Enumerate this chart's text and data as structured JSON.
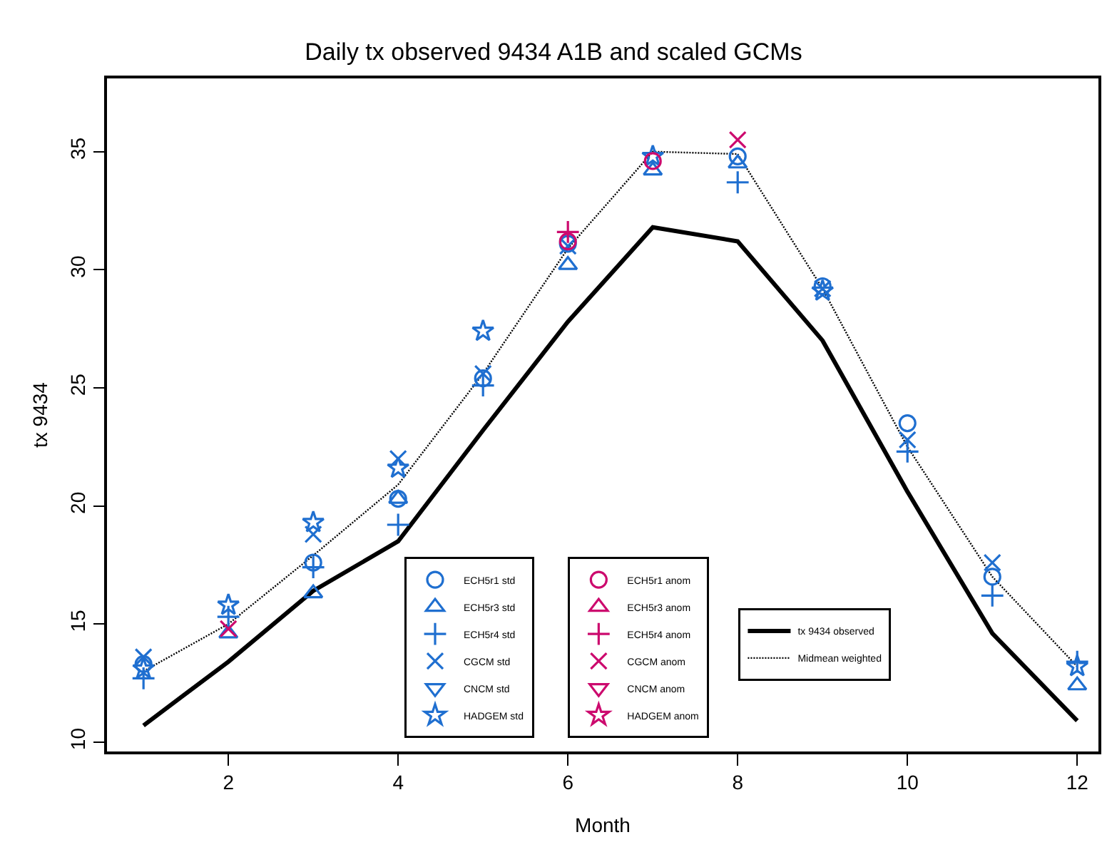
{
  "chart_data": {
    "type": "scatter",
    "title": "Daily tx observed 9434 A1B and scaled GCMs",
    "xlabel": "Month",
    "ylabel": "tx 9434",
    "x": [
      1,
      2,
      3,
      4,
      5,
      6,
      7,
      8,
      9,
      10,
      11,
      12
    ],
    "xlim": [
      0.57,
      12.25
    ],
    "xticks": [
      2,
      4,
      6,
      8,
      10,
      12
    ],
    "ylim": [
      9.6,
      38.1
    ],
    "yticks": [
      10,
      15,
      20,
      25,
      30,
      35
    ],
    "legend": "bottom",
    "series": [
      {
        "name": "ECH5r1 std",
        "color": "#1f6fd0",
        "marker": "circle",
        "values": [
          13.3,
          null,
          17.6,
          20.3,
          25.4,
          31.1,
          null,
          34.8,
          29.3,
          23.5,
          17.0,
          null
        ]
      },
      {
        "name": "ECH5r3 std",
        "color": "#1f6fd0",
        "marker": "triangle",
        "values": [
          null,
          14.6,
          16.3,
          20.3,
          null,
          30.2,
          34.2,
          34.5,
          null,
          null,
          null,
          12.4
        ]
      },
      {
        "name": "ECH5r4 std",
        "color": "#1f6fd0",
        "marker": "cross",
        "values": [
          12.7,
          15.3,
          17.4,
          19.2,
          25.1,
          null,
          null,
          33.7,
          null,
          22.3,
          16.2,
          13.4
        ]
      },
      {
        "name": "CGCM std",
        "color": "#1f6fd0",
        "marker": "x",
        "values": [
          13.6,
          null,
          18.8,
          22.0,
          25.6,
          31.0,
          null,
          null,
          29.2,
          22.8,
          17.6,
          null
        ]
      },
      {
        "name": "CNCM std",
        "color": "#1f6fd0",
        "marker": "triangle-down",
        "values": [
          null,
          null,
          null,
          null,
          null,
          null,
          null,
          null,
          null,
          null,
          null,
          null
        ]
      },
      {
        "name": "HADGEM std",
        "color": "#1f6fd0",
        "marker": "star",
        "values": [
          13.1,
          15.8,
          19.3,
          21.6,
          27.4,
          null,
          34.8,
          null,
          29.1,
          null,
          null,
          13.2
        ]
      },
      {
        "name": "ECH5r1 anom",
        "color": "#cc0a6e",
        "marker": "circle",
        "values": [
          null,
          null,
          null,
          null,
          null,
          31.2,
          34.6,
          null,
          null,
          null,
          null,
          null
        ]
      },
      {
        "name": "ECH5r3 anom",
        "color": "#cc0a6e",
        "marker": "triangle",
        "values": [
          null,
          null,
          null,
          null,
          null,
          null,
          null,
          null,
          null,
          null,
          null,
          null
        ]
      },
      {
        "name": "ECH5r4 anom",
        "color": "#cc0a6e",
        "marker": "cross",
        "values": [
          null,
          null,
          null,
          null,
          null,
          31.6,
          null,
          null,
          null,
          null,
          null,
          null
        ]
      },
      {
        "name": "CGCM anom",
        "color": "#cc0a6e",
        "marker": "x",
        "values": [
          null,
          14.8,
          null,
          null,
          null,
          null,
          null,
          35.5,
          null,
          null,
          null,
          null
        ]
      },
      {
        "name": "CNCM anom",
        "color": "#cc0a6e",
        "marker": "triangle-down",
        "values": [
          null,
          null,
          null,
          null,
          null,
          null,
          null,
          null,
          null,
          null,
          null,
          null
        ]
      },
      {
        "name": "HADGEM anom",
        "color": "#cc0a6e",
        "marker": "star",
        "values": [
          null,
          null,
          null,
          null,
          null,
          null,
          null,
          null,
          null,
          null,
          null,
          null
        ]
      },
      {
        "name": "tx 9434 observed",
        "type": "line",
        "color": "#000000",
        "line_style": "solid",
        "values": [
          10.7,
          13.4,
          16.4,
          18.5,
          23.2,
          27.8,
          31.8,
          31.2,
          27.0,
          20.6,
          14.6,
          10.9
        ]
      },
      {
        "name": "Midmean weighted",
        "type": "line",
        "color": "#000000",
        "line_style": "dotted",
        "values": [
          13.0,
          15.0,
          17.9,
          20.9,
          25.6,
          30.9,
          35.0,
          34.9,
          29.2,
          22.5,
          17.0,
          13.2
        ]
      }
    ]
  }
}
